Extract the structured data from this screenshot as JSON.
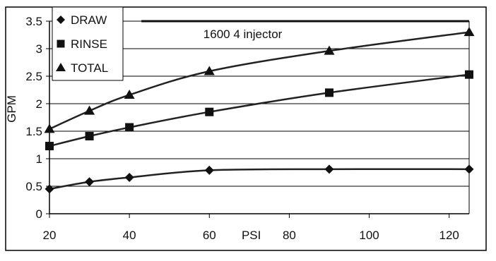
{
  "chart_data": {
    "type": "line",
    "xlabel": "PSI",
    "ylabel": "GPM",
    "xlim": [
      20,
      125
    ],
    "ylim": [
      0,
      3.5
    ],
    "x_ticks": [
      20,
      40,
      60,
      80,
      100,
      120
    ],
    "y_ticks": [
      0,
      0.5,
      1,
      1.5,
      2,
      2.5,
      3,
      3.5
    ],
    "grid": true,
    "legend_position": "top-left",
    "series": [
      {
        "name": "DRAW",
        "marker": "diamond",
        "x": [
          20,
          30,
          40,
          60,
          90,
          125
        ],
        "y": [
          0.45,
          0.58,
          0.66,
          0.79,
          0.81,
          0.81
        ]
      },
      {
        "name": "RINSE",
        "marker": "square",
        "x": [
          20,
          30,
          40,
          60,
          90,
          125
        ],
        "y": [
          1.23,
          1.41,
          1.57,
          1.85,
          2.2,
          2.53
        ]
      },
      {
        "name": "TOTAL",
        "marker": "triangle",
        "x": [
          20,
          30,
          40,
          60,
          90,
          125
        ],
        "y": [
          1.54,
          1.87,
          2.16,
          2.59,
          2.96,
          3.3
        ]
      }
    ],
    "reference_line": {
      "y": 3.5
    },
    "annotation": "1600 4 injector"
  },
  "colors": {
    "line": "#222222",
    "grid": "#000000",
    "frame": "#000000",
    "background": "#ffffff"
  }
}
